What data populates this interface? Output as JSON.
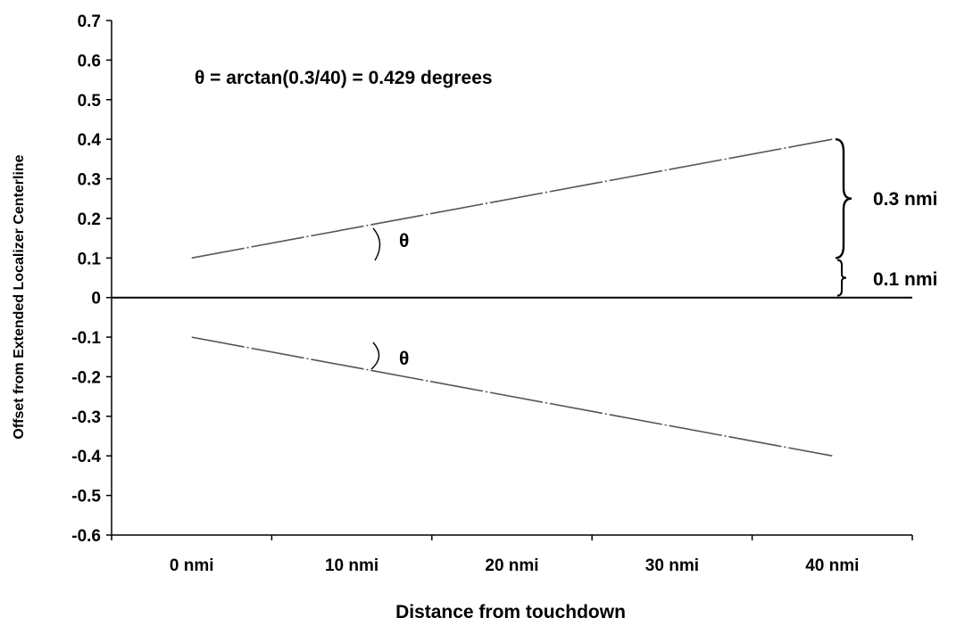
{
  "chart_data": {
    "type": "line",
    "title": "",
    "xlabel": "Distance from touchdown",
    "ylabel": "Offset from Extended Localizer Centerline",
    "x_categories": [
      "0 nmi",
      "10 nmi",
      "20 nmi",
      "30 nmi",
      "40 nmi"
    ],
    "xlim": [
      -5,
      45
    ],
    "ylim": [
      -0.6,
      0.7
    ],
    "y_ticks": [
      "0.7",
      "0.6",
      "0.5",
      "0.4",
      "0.3",
      "0.2",
      "0.1",
      "0",
      "-0.1",
      "-0.2",
      "-0.3",
      "-0.4",
      "-0.5",
      "-0.6"
    ],
    "grid": false,
    "series": [
      {
        "x": [
          0,
          40
        ],
        "y": [
          0.1,
          0.4
        ]
      },
      {
        "x": [
          0,
          40
        ],
        "y": [
          -0.1,
          -0.4
        ]
      }
    ],
    "annotations": {
      "formula": "θ = arctan(0.3/40) = 0.429 degrees",
      "theta_upper": "θ",
      "theta_lower": "θ",
      "bracket_large": "0.3 nmi",
      "bracket_small": "0.1 nmi"
    },
    "colors": {
      "line": "#555555",
      "axis": "#000000"
    }
  }
}
